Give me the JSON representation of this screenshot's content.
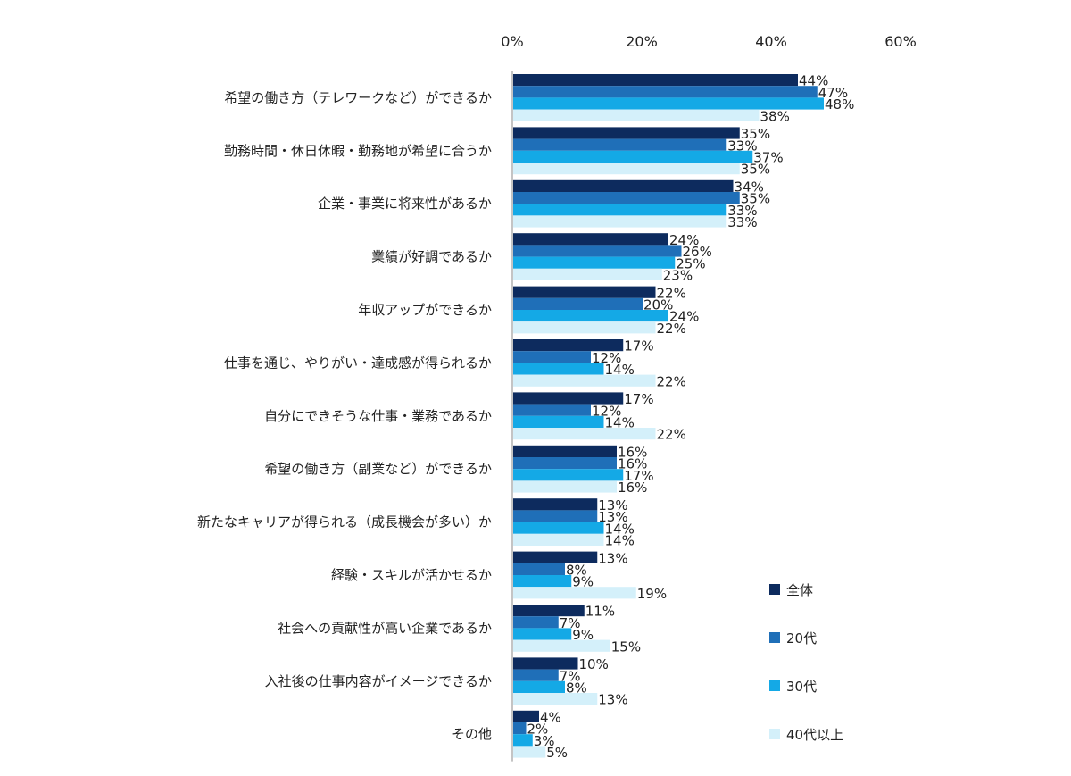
{
  "chart_data": {
    "type": "bar",
    "orientation": "horizontal",
    "title": "",
    "xlabel": "",
    "ylabel": "",
    "xlim": [
      0,
      60
    ],
    "x_ticks": [
      0,
      20,
      40,
      60
    ],
    "x_tick_labels": [
      "0%",
      "20%",
      "40%",
      "60%"
    ],
    "x_axis_position": "top",
    "grid": false,
    "legend_position": "bottom-right",
    "categories": [
      "希望の働き方（テレワークなど）ができるか",
      "勤務時間・休日休暇・勤務地が希望に合うか",
      "企業・事業に将来性があるか",
      "業績が好調であるか",
      "年収アップができるか",
      "仕事を通じ、やりがい・達成感が得られるか",
      "自分にできそうな仕事・業務であるか",
      "希望の働き方（副業など）ができるか",
      "新たなキャリアが得られる（成長機会が多い）か",
      "経験・スキルが活かせるか",
      "社会への貢献性が高い企業であるか",
      "入社後の仕事内容がイメージできるか",
      "その他"
    ],
    "series": [
      {
        "name": "全体",
        "color": "#0d2b5e",
        "values": [
          44,
          35,
          34,
          24,
          22,
          17,
          17,
          16,
          13,
          13,
          11,
          10,
          4
        ]
      },
      {
        "name": "20代",
        "color": "#1f6fb8",
        "values": [
          47,
          33,
          35,
          26,
          20,
          12,
          12,
          16,
          13,
          8,
          7,
          7,
          2
        ]
      },
      {
        "name": "30代",
        "color": "#14a9e6",
        "values": [
          48,
          37,
          33,
          25,
          24,
          14,
          14,
          17,
          14,
          9,
          9,
          8,
          3
        ]
      },
      {
        "name": "40代以上",
        "color": "#d4f0fa",
        "values": [
          38,
          35,
          33,
          23,
          22,
          22,
          22,
          16,
          14,
          19,
          15,
          13,
          5
        ]
      }
    ],
    "value_suffix": "%"
  }
}
